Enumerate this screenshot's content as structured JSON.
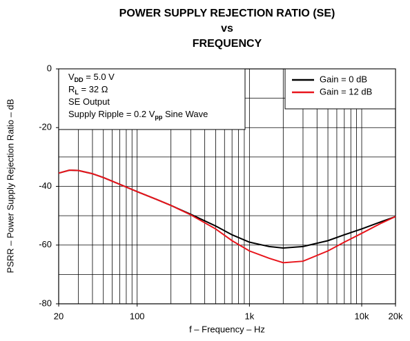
{
  "chart_data": {
    "type": "line",
    "title": [
      "POWER SUPPLY REJECTION RATIO (SE)",
      "vs",
      "FREQUENCY"
    ],
    "xlabel": "f – Frequency – Hz",
    "ylabel": "PSRR – Power Supply Rejection Ratio – dB",
    "xscale": "log",
    "xlim": [
      20,
      20000
    ],
    "ylim": [
      -80,
      0
    ],
    "xticks": [
      20,
      100,
      {
        "value": 1000,
        "label": "1k"
      },
      {
        "value": 10000,
        "label": "10k"
      },
      {
        "value": 20000,
        "label": "20k"
      }
    ],
    "yticks": [
      -80,
      -60,
      -40,
      -20,
      0
    ],
    "xgrid": [
      20,
      30,
      40,
      50,
      60,
      70,
      80,
      90,
      100,
      200,
      300,
      400,
      500,
      600,
      700,
      800,
      900,
      1000,
      2000,
      3000,
      4000,
      5000,
      6000,
      7000,
      8000,
      9000,
      10000,
      20000
    ],
    "ygrid": [
      -80,
      -70,
      -60,
      -50,
      -40,
      -30,
      -20,
      -10,
      0
    ],
    "grid": true,
    "legend": "upper right",
    "annotation": [
      {
        "text": "V",
        "sub": "DD",
        "rest": " = 5.0 V"
      },
      {
        "text": "R",
        "sub": "L",
        "rest": " = 32 Ω"
      },
      {
        "text": "SE Output"
      },
      {
        "text": "Supply Ripple = 0.2 V",
        "sub": "pp",
        "rest": " Sine Wave"
      }
    ],
    "x": [
      20,
      25,
      30,
      40,
      50,
      70,
      100,
      150,
      200,
      300,
      500,
      700,
      1000,
      1500,
      2000,
      3000,
      5000,
      7000,
      10000,
      15000,
      20000
    ],
    "series": [
      {
        "name": "Gain = 0 dB",
        "color": "#000000",
        "values": [
          -35.5,
          -34.5,
          -34.6,
          -35.7,
          -37,
          -39.3,
          -41.8,
          -44.5,
          -46.5,
          -49.5,
          -53.5,
          -56.5,
          -59,
          -60.5,
          -61,
          -60.5,
          -58.5,
          -56.5,
          -54.5,
          -52,
          -50.3
        ]
      },
      {
        "name": "Gain = 12 dB",
        "color": "#e8141b",
        "values": [
          -35.5,
          -34.5,
          -34.6,
          -35.7,
          -37,
          -39.3,
          -41.8,
          -44.5,
          -46.5,
          -49.7,
          -54.5,
          -58.5,
          -62,
          -64.5,
          -66,
          -65.5,
          -62,
          -59,
          -56,
          -52.5,
          -50.3
        ]
      }
    ]
  }
}
